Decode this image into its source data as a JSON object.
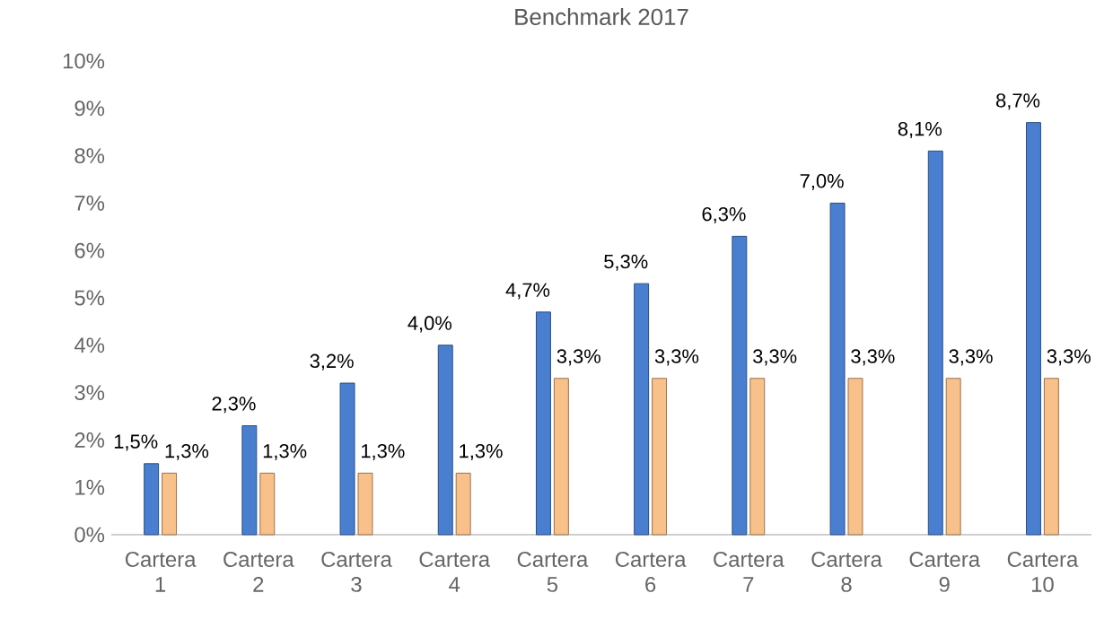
{
  "chart_data": {
    "type": "bar",
    "title": "Benchmark 2017",
    "categories": [
      "Cartera 1",
      "Cartera 2",
      "Cartera 3",
      "Cartera 4",
      "Cartera 5",
      "Cartera 6",
      "Cartera 7",
      "Cartera 8",
      "Cartera 9",
      "Cartera 10"
    ],
    "series": [
      {
        "color": "#4a7fcf",
        "values": [
          1.5,
          2.3,
          3.2,
          4.0,
          4.7,
          5.3,
          6.3,
          7.0,
          8.1,
          8.7
        ],
        "value_labels": [
          "1,5%",
          "2,3%",
          "3,2%",
          "4,0%",
          "4,7%",
          "5,3%",
          "6,3%",
          "7,0%",
          "8,1%",
          "8,7%"
        ]
      },
      {
        "color": "#f8c08a",
        "values": [
          1.3,
          1.3,
          1.3,
          1.3,
          3.3,
          3.3,
          3.3,
          3.3,
          3.3,
          3.3
        ],
        "value_labels": [
          "1,3%",
          "1,3%",
          "1,3%",
          "1,3%",
          "3,3%",
          "3,3%",
          "3,3%",
          "3,3%",
          "3,3%",
          "3,3%"
        ]
      }
    ],
    "ylim": [
      0,
      10
    ],
    "yticks": [
      {
        "value": 0,
        "label": "0%"
      },
      {
        "value": 1,
        "label": "1%"
      },
      {
        "value": 2,
        "label": "2%"
      },
      {
        "value": 3,
        "label": "3%"
      },
      {
        "value": 4,
        "label": "4%"
      },
      {
        "value": 5,
        "label": "5%"
      },
      {
        "value": 6,
        "label": "6%"
      },
      {
        "value": 7,
        "label": "7%"
      },
      {
        "value": 8,
        "label": "8%"
      },
      {
        "value": 9,
        "label": "9%"
      },
      {
        "value": 10,
        "label": "10%"
      }
    ]
  }
}
